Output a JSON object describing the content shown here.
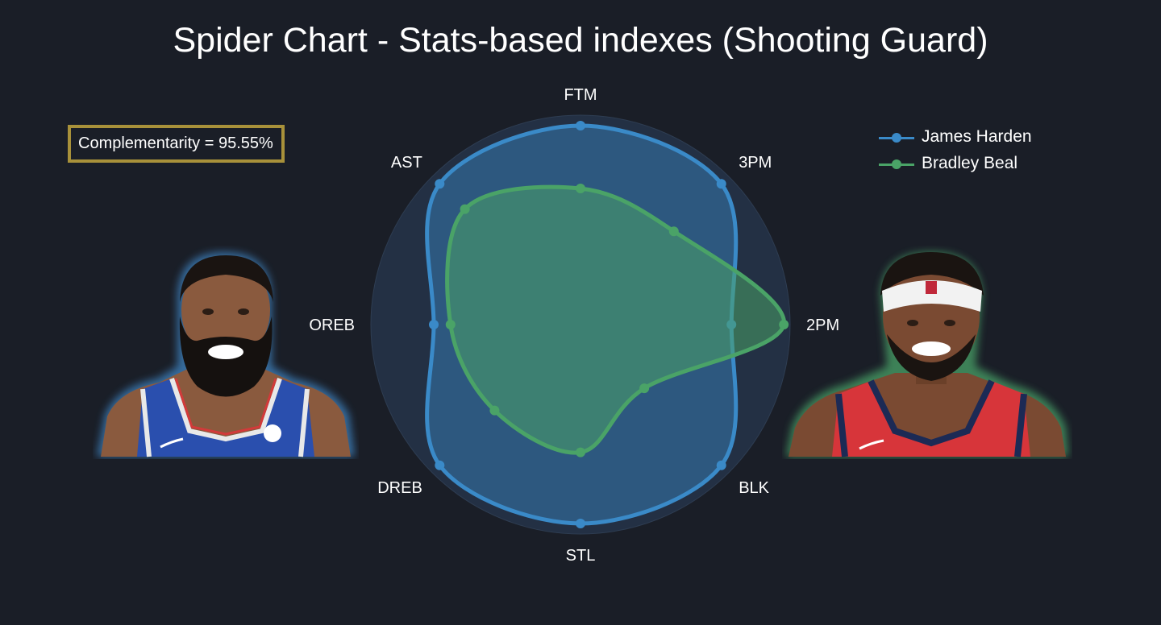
{
  "title": "Spider Chart - Stats-based indexes (Shooting Guard)",
  "complementarity": "Complementarity = 95.55%",
  "colors": {
    "background": "#1a1e27",
    "harden": "#3a8ac8",
    "beal": "#4aa367",
    "box_border": "#a8913a"
  },
  "chart_data": {
    "type": "radar",
    "categories": [
      "FTM",
      "3PM",
      "2PM",
      "BLK",
      "STL",
      "DREB",
      "OREB",
      "AST"
    ],
    "rmax": 1.0,
    "legend_position": "top-right",
    "series": [
      {
        "name": "James Harden",
        "values": [
          0.95,
          0.95,
          0.72,
          0.95,
          0.95,
          0.95,
          0.7,
          0.95
        ]
      },
      {
        "name": "Bradley Beal",
        "values": [
          0.65,
          0.63,
          0.97,
          0.43,
          0.61,
          0.58,
          0.62,
          0.78
        ]
      }
    ]
  },
  "images": {
    "left_player": "James Harden photo",
    "right_player": "Bradley Beal photo"
  }
}
